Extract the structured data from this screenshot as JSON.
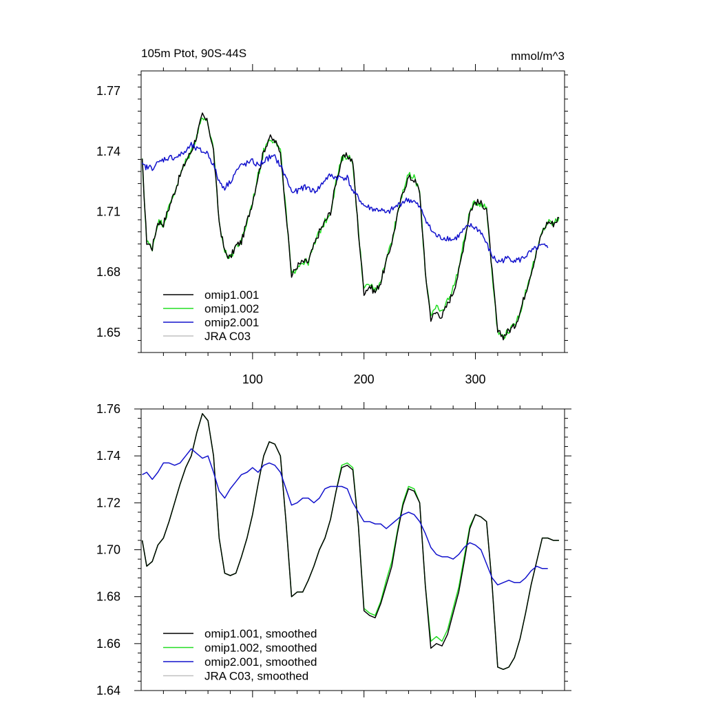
{
  "chart_data": [
    {
      "type": "line",
      "title": "105m Ptot, 90S-44S",
      "units": "mmol/m^3",
      "xlabel": "",
      "ylabel": "",
      "xlim": [
        0,
        380
      ],
      "ylim": [
        1.64,
        1.78
      ],
      "xticks": [
        100,
        200,
        300
      ],
      "xtick_labels": [
        "100",
        "200",
        "300"
      ],
      "yticks": [
        1.65,
        1.68,
        1.71,
        1.74,
        1.77
      ],
      "ytick_labels": [
        "1.65",
        "1.68",
        "1.71",
        "1.74",
        "1.77"
      ],
      "legend_position": "bottom-left",
      "series": [
        {
          "name": "omip1.001",
          "color": "#000000",
          "noise": 0.0035,
          "x": [
            1,
            5,
            10,
            15,
            20,
            25,
            30,
            35,
            40,
            45,
            50,
            55,
            60,
            65,
            70,
            75,
            80,
            85,
            90,
            95,
            100,
            105,
            110,
            115,
            120,
            125,
            130,
            135,
            140,
            145,
            150,
            155,
            160,
            165,
            170,
            175,
            180,
            185,
            190,
            195,
            200,
            205,
            210,
            215,
            220,
            225,
            230,
            235,
            240,
            245,
            250,
            255,
            260,
            265,
            270,
            275,
            280,
            285,
            290,
            295,
            300,
            305,
            310,
            315,
            320,
            325,
            330,
            335,
            340,
            345,
            350,
            355,
            360,
            365,
            370,
            375
          ],
          "y": [
            1.735,
            1.695,
            1.692,
            1.705,
            1.704,
            1.712,
            1.72,
            1.728,
            1.735,
            1.74,
            1.748,
            1.758,
            1.754,
            1.74,
            1.705,
            1.69,
            1.687,
            1.693,
            1.695,
            1.705,
            1.715,
            1.728,
            1.74,
            1.747,
            1.745,
            1.74,
            1.71,
            1.678,
            1.683,
            1.685,
            1.685,
            1.693,
            1.7,
            1.705,
            1.71,
            1.725,
            1.736,
            1.738,
            1.735,
            1.7,
            1.67,
            1.673,
            1.67,
            1.675,
            1.685,
            1.695,
            1.708,
            1.72,
            1.727,
            1.726,
            1.72,
            1.68,
            1.657,
            1.66,
            1.658,
            1.664,
            1.67,
            1.68,
            1.695,
            1.71,
            1.715,
            1.714,
            1.712,
            1.68,
            1.65,
            1.648,
            1.651,
            1.653,
            1.66,
            1.67,
            1.68,
            1.69,
            1.7,
            1.705,
            1.704,
            1.707
          ]
        },
        {
          "name": "omip1.002",
          "color": "#22dd22",
          "noise": 0.0035,
          "x": [
            1,
            5,
            10,
            15,
            20,
            25,
            30,
            35,
            40,
            45,
            50,
            55,
            60,
            65,
            70,
            75,
            80,
            85,
            90,
            95,
            100,
            105,
            110,
            115,
            120,
            125,
            130,
            135,
            140,
            145,
            150,
            155,
            160,
            165,
            170,
            175,
            180,
            185,
            190,
            195,
            200,
            205,
            210,
            215,
            220,
            225,
            230,
            235,
            240,
            245,
            250,
            255,
            260,
            265,
            270,
            275,
            280,
            285,
            290,
            295,
            300,
            305,
            310,
            315,
            320,
            325,
            330,
            335,
            340,
            345,
            350,
            355,
            360,
            365,
            370,
            375
          ],
          "y": [
            1.735,
            1.695,
            1.692,
            1.705,
            1.704,
            1.712,
            1.72,
            1.728,
            1.735,
            1.74,
            1.748,
            1.758,
            1.754,
            1.74,
            1.705,
            1.69,
            1.687,
            1.693,
            1.695,
            1.705,
            1.715,
            1.728,
            1.74,
            1.747,
            1.745,
            1.74,
            1.71,
            1.678,
            1.683,
            1.685,
            1.685,
            1.693,
            1.7,
            1.705,
            1.71,
            1.725,
            1.736,
            1.738,
            1.735,
            1.7,
            1.671,
            1.674,
            1.671,
            1.676,
            1.686,
            1.696,
            1.709,
            1.721,
            1.728,
            1.727,
            1.72,
            1.68,
            1.659,
            1.662,
            1.66,
            1.666,
            1.672,
            1.682,
            1.696,
            1.71,
            1.715,
            1.714,
            1.712,
            1.68,
            1.65,
            1.648,
            1.651,
            1.653,
            1.66,
            1.67,
            1.68,
            1.69,
            1.7,
            1.705,
            1.704,
            1.707
          ]
        },
        {
          "name": "omip2.001",
          "color": "#1111cc",
          "noise": 0.003,
          "x": [
            1,
            5,
            10,
            15,
            20,
            25,
            30,
            35,
            40,
            45,
            50,
            55,
            60,
            65,
            70,
            75,
            80,
            85,
            90,
            95,
            100,
            105,
            110,
            115,
            120,
            125,
            130,
            135,
            140,
            145,
            150,
            155,
            160,
            165,
            170,
            175,
            180,
            185,
            190,
            195,
            200,
            205,
            210,
            215,
            220,
            225,
            230,
            235,
            240,
            245,
            250,
            255,
            260,
            265,
            270,
            275,
            280,
            285,
            290,
            295,
            300,
            305,
            310,
            315,
            320,
            325,
            330,
            335,
            340,
            345,
            350,
            355,
            360,
            365
          ],
          "y": [
            1.733,
            1.732,
            1.732,
            1.734,
            1.736,
            1.737,
            1.737,
            1.738,
            1.74,
            1.743,
            1.741,
            1.74,
            1.739,
            1.733,
            1.725,
            1.722,
            1.725,
            1.73,
            1.733,
            1.734,
            1.735,
            1.733,
            1.735,
            1.737,
            1.737,
            1.733,
            1.727,
            1.72,
            1.72,
            1.722,
            1.722,
            1.72,
            1.722,
            1.726,
            1.728,
            1.727,
            1.727,
            1.727,
            1.72,
            1.717,
            1.713,
            1.712,
            1.711,
            1.711,
            1.709,
            1.711,
            1.713,
            1.715,
            1.716,
            1.715,
            1.712,
            1.707,
            1.701,
            1.698,
            1.697,
            1.697,
            1.696,
            1.698,
            1.701,
            1.703,
            1.702,
            1.7,
            1.694,
            1.688,
            1.685,
            1.686,
            1.687,
            1.686,
            1.686,
            1.688,
            1.69,
            1.692,
            1.693,
            1.692
          ]
        },
        {
          "name": "JRA C03",
          "color": "#c0c0c0",
          "x": [],
          "y": []
        }
      ]
    },
    {
      "type": "line",
      "title": "",
      "xlabel": "",
      "ylabel": "",
      "xlim": [
        0,
        380
      ],
      "ylim": [
        1.64,
        1.76
      ],
      "xticks": [
        100,
        200,
        300
      ],
      "yticks": [
        1.64,
        1.66,
        1.68,
        1.7,
        1.72,
        1.74,
        1.76
      ],
      "ytick_labels": [
        "1.64",
        "1.66",
        "1.68",
        "1.70",
        "1.72",
        "1.74",
        "1.76"
      ],
      "legend_position": "bottom-left",
      "series": [
        {
          "name": "omip1.001, smoothed",
          "color": "#000000",
          "x": [
            1,
            5,
            10,
            15,
            20,
            25,
            30,
            35,
            40,
            45,
            50,
            55,
            60,
            65,
            70,
            75,
            80,
            85,
            90,
            95,
            100,
            105,
            110,
            115,
            120,
            125,
            130,
            135,
            140,
            145,
            150,
            155,
            160,
            165,
            170,
            175,
            180,
            185,
            190,
            195,
            200,
            205,
            210,
            215,
            220,
            225,
            230,
            235,
            240,
            245,
            250,
            255,
            260,
            265,
            270,
            275,
            280,
            285,
            290,
            295,
            300,
            305,
            310,
            315,
            320,
            325,
            330,
            335,
            340,
            345,
            350,
            355,
            360,
            365,
            370,
            375
          ],
          "y": [
            1.704,
            1.693,
            1.695,
            1.702,
            1.705,
            1.712,
            1.72,
            1.728,
            1.735,
            1.74,
            1.75,
            1.758,
            1.755,
            1.74,
            1.705,
            1.69,
            1.689,
            1.69,
            1.697,
            1.705,
            1.715,
            1.728,
            1.74,
            1.746,
            1.745,
            1.74,
            1.712,
            1.68,
            1.682,
            1.682,
            1.687,
            1.693,
            1.7,
            1.705,
            1.713,
            1.725,
            1.735,
            1.736,
            1.734,
            1.71,
            1.674,
            1.672,
            1.671,
            1.677,
            1.685,
            1.693,
            1.707,
            1.719,
            1.726,
            1.725,
            1.72,
            1.685,
            1.658,
            1.66,
            1.659,
            1.664,
            1.673,
            1.682,
            1.695,
            1.709,
            1.715,
            1.714,
            1.712,
            1.685,
            1.65,
            1.649,
            1.65,
            1.654,
            1.662,
            1.673,
            1.685,
            1.695,
            1.705,
            1.705,
            1.704,
            1.704
          ]
        },
        {
          "name": "omip1.002, smoothed",
          "color": "#22dd22",
          "x": [
            1,
            5,
            10,
            15,
            20,
            25,
            30,
            35,
            40,
            45,
            50,
            55,
            60,
            65,
            70,
            75,
            80,
            85,
            90,
            95,
            100,
            105,
            110,
            115,
            120,
            125,
            130,
            135,
            140,
            145,
            150,
            155,
            160,
            165,
            170,
            175,
            180,
            185,
            190,
            195,
            200,
            205,
            210,
            215,
            220,
            225,
            230,
            235,
            240,
            245,
            250,
            255,
            260,
            265,
            270,
            275,
            280,
            285,
            290,
            295,
            300,
            305,
            310,
            315,
            320,
            325,
            330,
            335,
            340,
            345,
            350,
            355,
            360,
            365,
            370,
            375
          ],
          "y": [
            1.704,
            1.693,
            1.695,
            1.702,
            1.705,
            1.712,
            1.72,
            1.728,
            1.735,
            1.74,
            1.75,
            1.758,
            1.755,
            1.74,
            1.705,
            1.69,
            1.689,
            1.69,
            1.697,
            1.705,
            1.715,
            1.728,
            1.74,
            1.746,
            1.745,
            1.74,
            1.712,
            1.68,
            1.682,
            1.682,
            1.687,
            1.693,
            1.7,
            1.705,
            1.713,
            1.725,
            1.736,
            1.737,
            1.735,
            1.71,
            1.675,
            1.673,
            1.672,
            1.678,
            1.687,
            1.695,
            1.708,
            1.72,
            1.727,
            1.726,
            1.72,
            1.685,
            1.661,
            1.663,
            1.661,
            1.666,
            1.675,
            1.684,
            1.697,
            1.71,
            1.715,
            1.714,
            1.712,
            1.685,
            1.65,
            1.649,
            1.65,
            1.654,
            1.662,
            1.673,
            1.685,
            1.695,
            1.705,
            1.705,
            1.704,
            1.704
          ]
        },
        {
          "name": "omip2.001, smoothed",
          "color": "#1111cc",
          "x": [
            1,
            5,
            10,
            15,
            20,
            25,
            30,
            35,
            40,
            45,
            50,
            55,
            60,
            65,
            70,
            75,
            80,
            85,
            90,
            95,
            100,
            105,
            110,
            115,
            120,
            125,
            130,
            135,
            140,
            145,
            150,
            155,
            160,
            165,
            170,
            175,
            180,
            185,
            190,
            195,
            200,
            205,
            210,
            215,
            220,
            225,
            230,
            235,
            240,
            245,
            250,
            255,
            260,
            265,
            270,
            275,
            280,
            285,
            290,
            295,
            300,
            305,
            310,
            315,
            320,
            325,
            330,
            335,
            340,
            345,
            350,
            355,
            360,
            365
          ],
          "y": [
            1.732,
            1.733,
            1.73,
            1.733,
            1.737,
            1.737,
            1.736,
            1.737,
            1.74,
            1.743,
            1.741,
            1.739,
            1.74,
            1.733,
            1.725,
            1.722,
            1.726,
            1.729,
            1.732,
            1.733,
            1.735,
            1.733,
            1.736,
            1.737,
            1.736,
            1.733,
            1.726,
            1.719,
            1.72,
            1.722,
            1.722,
            1.72,
            1.722,
            1.726,
            1.727,
            1.727,
            1.727,
            1.726,
            1.72,
            1.716,
            1.712,
            1.712,
            1.711,
            1.711,
            1.709,
            1.711,
            1.713,
            1.715,
            1.716,
            1.715,
            1.712,
            1.707,
            1.701,
            1.698,
            1.697,
            1.697,
            1.696,
            1.698,
            1.701,
            1.703,
            1.702,
            1.7,
            1.694,
            1.688,
            1.685,
            1.686,
            1.687,
            1.686,
            1.686,
            1.688,
            1.691,
            1.693,
            1.692,
            1.692
          ]
        },
        {
          "name": "JRA C03, smoothed",
          "color": "#c0c0c0",
          "x": [],
          "y": []
        }
      ]
    }
  ]
}
